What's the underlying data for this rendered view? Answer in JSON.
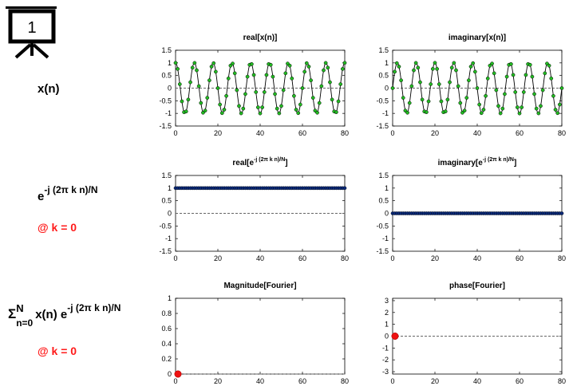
{
  "slide_number": "1",
  "rows": {
    "signal": {
      "label": "x(n)"
    },
    "kernel": {
      "base": "e",
      "exponent": "-j (2π k n)/N",
      "condition": "@ k = 0"
    },
    "transform": {
      "sigma": "Σ",
      "upper": "N",
      "lower": "n=0",
      "term_x": "x(n) e",
      "exponent": "-j (2π k n)/N",
      "condition": "@ k = 0"
    }
  },
  "colors": {
    "signal_marker": "#22bb22",
    "kernel_marker": "#0a2a7a",
    "fourier_marker": "#ee1111",
    "zero_line": "#666666"
  },
  "plot_titles": {
    "real_x": "real[x(n)]",
    "imag_x": "imaginary[x(n)]",
    "real_e_pre": "real[e",
    "imag_e_pre": "imaginary[e",
    "e_sup": "-j (2π k n)/N",
    "e_post": "]",
    "magnitude": "Magnitude[Fourier]",
    "phase": "phase[Fourier]"
  },
  "chart_data": [
    {
      "id": "real_x",
      "type": "line",
      "x_range": [
        0,
        80
      ],
      "ylim": [
        -1.5,
        1.5
      ],
      "x_ticks": [
        "0",
        "20",
        "40",
        "60",
        "80"
      ],
      "y_ticks": [
        "1.5",
        "1",
        "0.5",
        "0",
        "-0.5",
        "-1",
        "-1.5"
      ],
      "series": [
        {
          "function": "cos",
          "cycles": 9,
          "x": [
            0,
            80
          ],
          "sample_step": 1
        }
      ]
    },
    {
      "id": "imag_x",
      "type": "line",
      "x_range": [
        0,
        80
      ],
      "ylim": [
        -1.5,
        1.5
      ],
      "x_ticks": [
        "0",
        "20",
        "40",
        "60",
        "80"
      ],
      "y_ticks": [
        "1.5",
        "1",
        "0.5",
        "0",
        "-0.5",
        "-1",
        "-1.5"
      ],
      "series": [
        {
          "function": "sin",
          "cycles": 9,
          "x": [
            0,
            80
          ],
          "sample_step": 1
        }
      ]
    },
    {
      "id": "real_e",
      "type": "scatter",
      "x_range": [
        0,
        80
      ],
      "ylim": [
        -1.5,
        1.5
      ],
      "x_ticks": [
        "0",
        "20",
        "40",
        "60",
        "80"
      ],
      "y_ticks": [
        "1.5",
        "1",
        "0.5",
        "0",
        "-0.5",
        "-1",
        "-1.5"
      ],
      "series": [
        {
          "constant": 1,
          "x": [
            0,
            80
          ],
          "sample_step": 1
        }
      ]
    },
    {
      "id": "imag_e",
      "type": "scatter",
      "x_range": [
        0,
        80
      ],
      "ylim": [
        -1.5,
        1.5
      ],
      "x_ticks": [
        "0",
        "20",
        "40",
        "60",
        "80"
      ],
      "y_ticks": [
        "1.5",
        "1",
        "0.5",
        "0",
        "-0.5",
        "-1",
        "-1.5"
      ],
      "series": [
        {
          "constant": 0,
          "x": [
            0,
            80
          ],
          "sample_step": 1
        }
      ]
    },
    {
      "id": "magnitude",
      "type": "scatter",
      "x_range": [
        0,
        80
      ],
      "ylim": [
        0,
        1
      ],
      "x_ticks": [
        "0",
        "20",
        "40",
        "60",
        "80"
      ],
      "y_ticks": [
        "1",
        "0.8",
        "0.6",
        "0.4",
        "0.2",
        "0"
      ],
      "points": [
        {
          "x": 0,
          "y": 0
        }
      ]
    },
    {
      "id": "phase",
      "type": "scatter",
      "x_range": [
        0,
        80
      ],
      "ylim": [
        -3.2,
        3.2
      ],
      "x_ticks": [
        "0",
        "20",
        "40",
        "60",
        "80"
      ],
      "y_ticks": [
        "3",
        "2",
        "1",
        "0",
        "-1",
        "-2",
        "-3"
      ],
      "points": [
        {
          "x": 0,
          "y": 0
        }
      ]
    }
  ]
}
